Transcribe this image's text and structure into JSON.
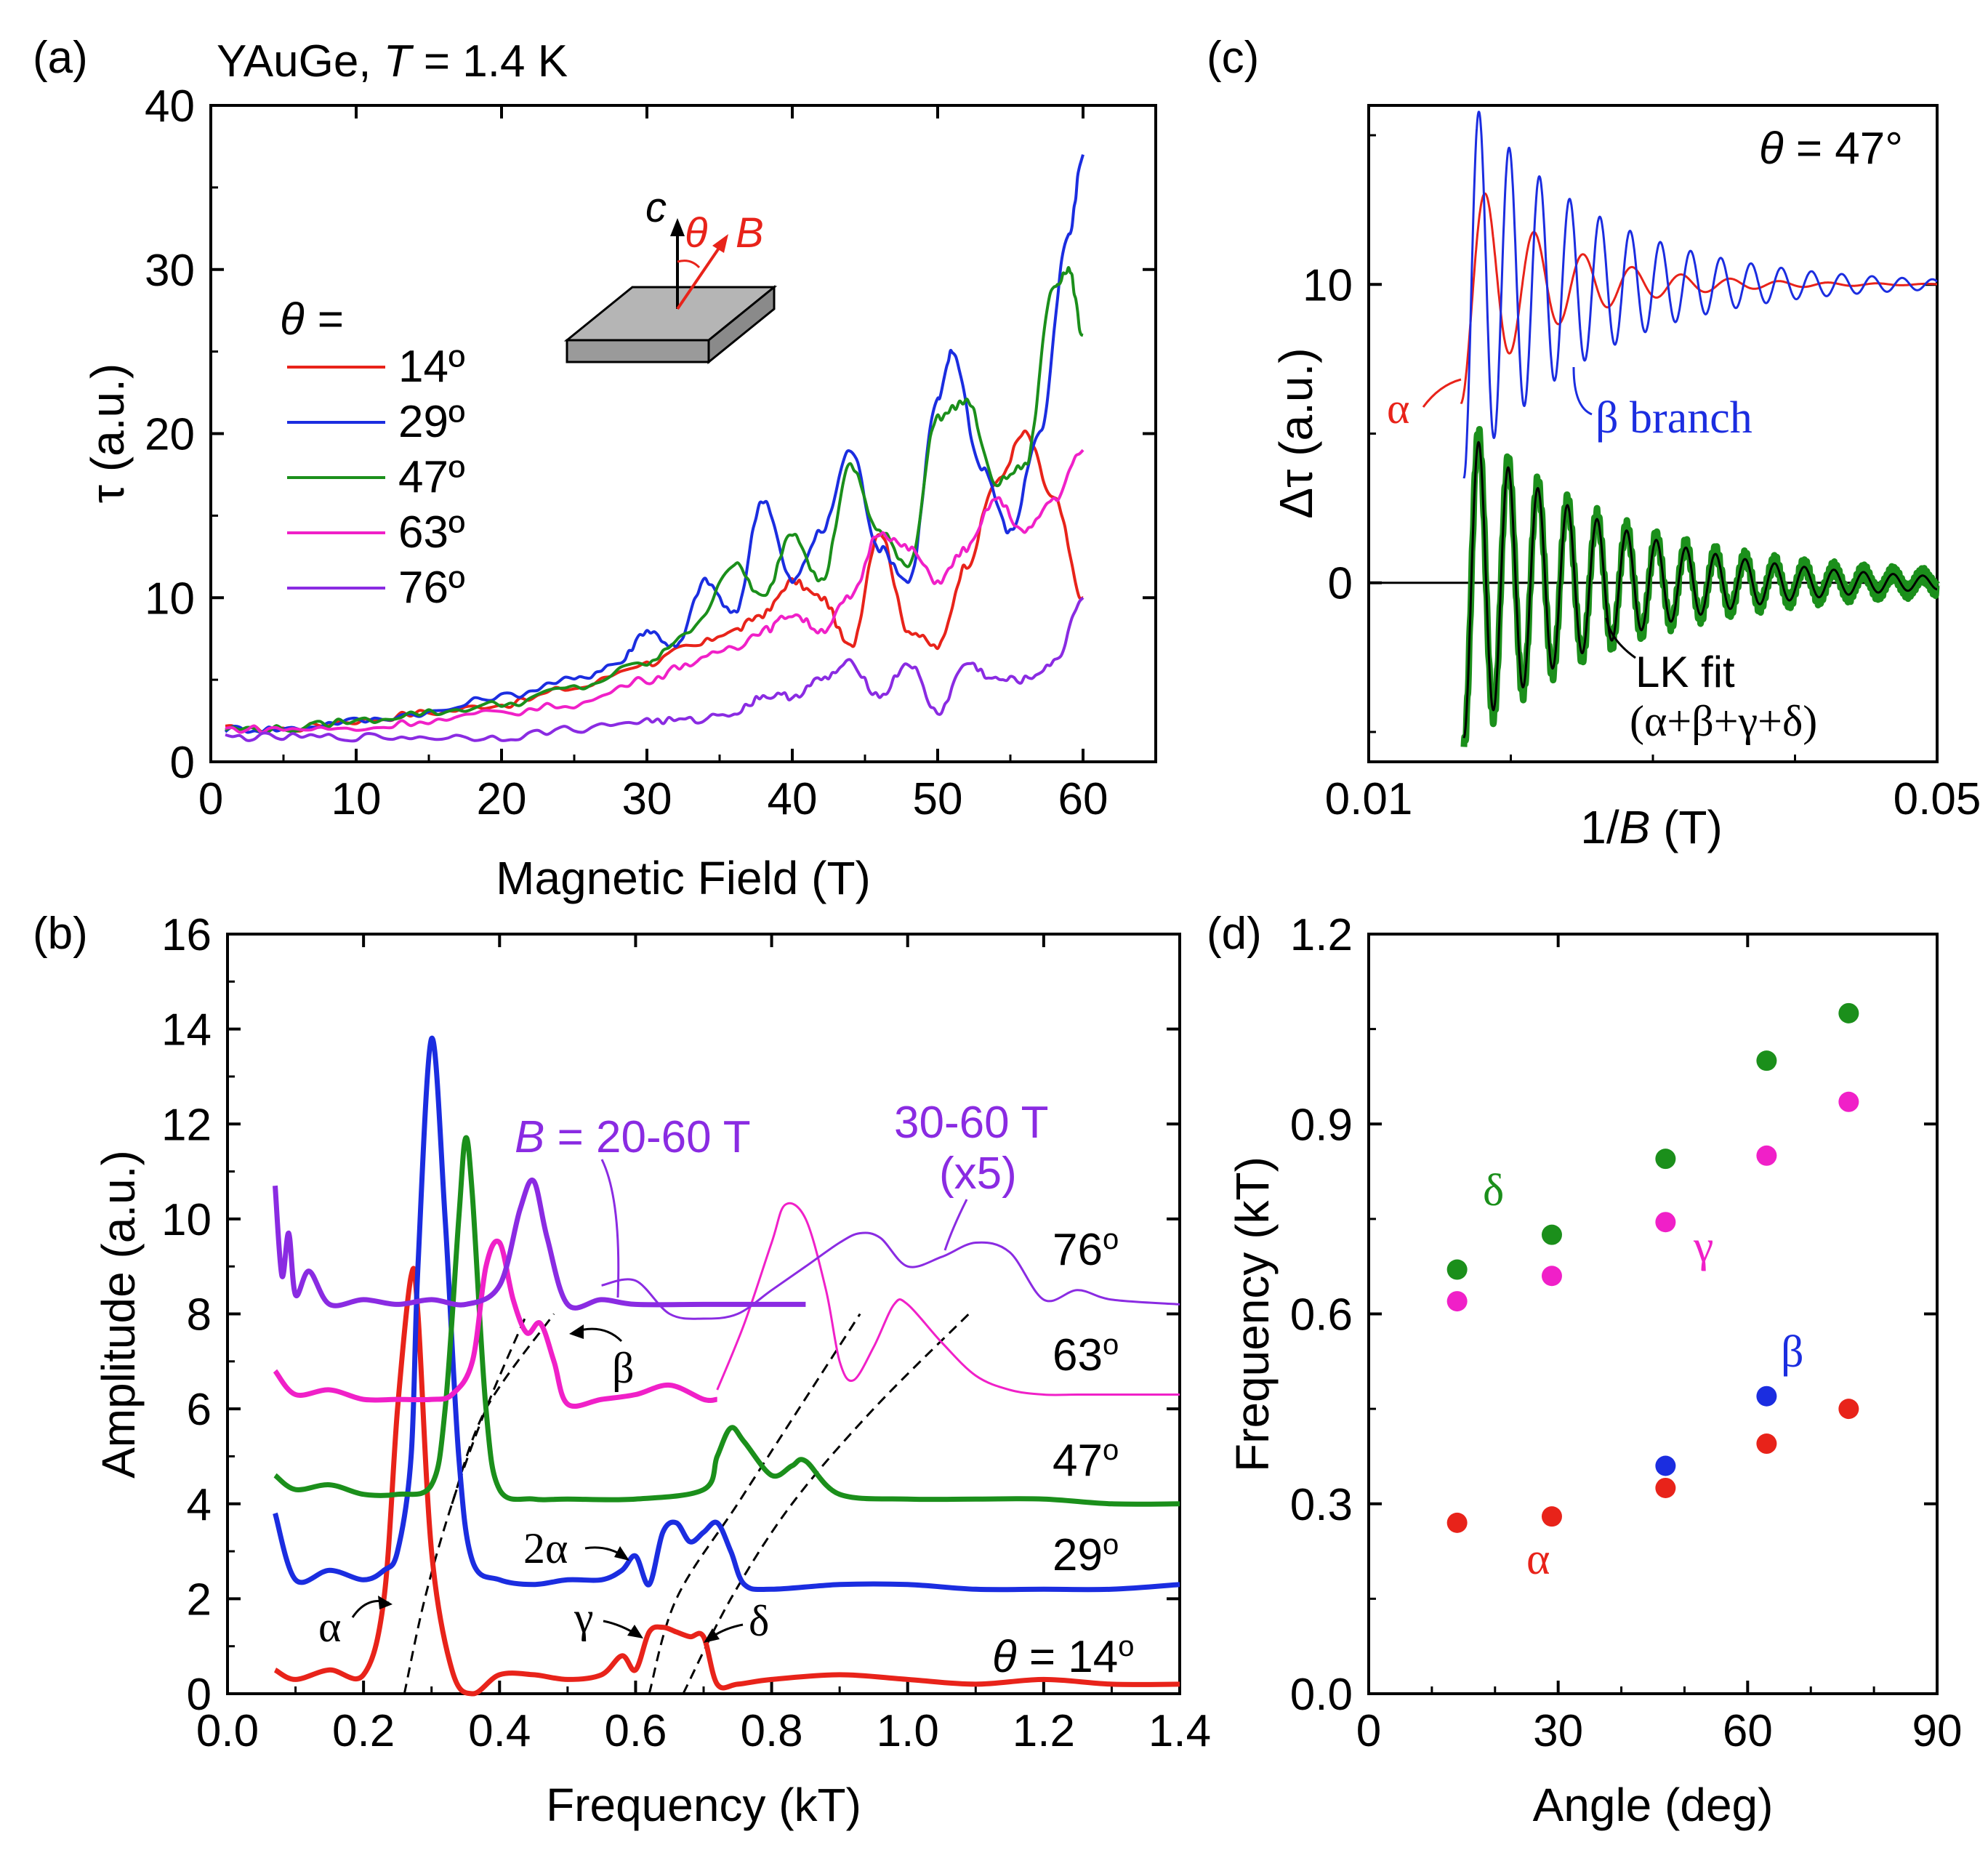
{
  "chart_data": [
    {
      "panel": "(a)",
      "type": "line",
      "title": "YAuGe, T = 1.4 K",
      "title_parts": [
        "YAuGe, ",
        "T",
        " = 1.4 K"
      ],
      "xlabel": "Magnetic Field (T)",
      "ylabel": "τ (a.u.)",
      "xlim": [
        0,
        65
      ],
      "ylim": [
        0,
        40
      ],
      "xticks": [
        0,
        10,
        20,
        30,
        40,
        50,
        60
      ],
      "yticks": [
        0,
        10,
        20,
        30,
        40
      ],
      "legend_header": "θ =",
      "legend_placement": "left",
      "inset_labels": {
        "axis": "c",
        "angle": "θ",
        "field": "B"
      },
      "series": [
        {
          "name": "14º",
          "color": "#e8231a",
          "x": [
            1,
            5,
            10,
            15,
            20,
            25,
            30,
            33,
            36,
            38,
            40,
            42,
            44,
            46,
            48,
            50,
            52,
            54,
            56,
            58,
            60
          ],
          "y": [
            2,
            2,
            2.5,
            3,
            3.5,
            4.5,
            6,
            7,
            8,
            9,
            11,
            10,
            7,
            14,
            8,
            7,
            12,
            17,
            20,
            16,
            10
          ]
        },
        {
          "name": "29º",
          "color": "#1b2de0",
          "x": [
            1,
            5,
            10,
            15,
            20,
            25,
            28,
            30,
            32,
            34,
            36,
            38,
            40,
            42,
            44,
            46,
            48,
            50,
            51,
            53,
            55,
            57,
            59,
            60
          ],
          "y": [
            2,
            2,
            2.5,
            3,
            4,
            5,
            6,
            8,
            7,
            11,
            9,
            16,
            11,
            14,
            19,
            13,
            11,
            22,
            25,
            18,
            14,
            20,
            32,
            37
          ]
        },
        {
          "name": "47º",
          "color": "#1b8f1b",
          "x": [
            1,
            5,
            10,
            15,
            20,
            25,
            30,
            33,
            36,
            38,
            40,
            42,
            44,
            46,
            48,
            50,
            52,
            54,
            56,
            58,
            59,
            60
          ],
          "y": [
            2,
            2,
            2.5,
            3,
            3.5,
            4.5,
            6,
            8,
            12,
            10,
            14,
            11,
            18,
            14,
            12,
            21,
            22,
            17,
            18,
            29,
            30,
            26
          ]
        },
        {
          "name": "63º",
          "color": "#f020c8",
          "x": [
            1,
            5,
            10,
            15,
            20,
            25,
            30,
            33,
            36,
            38,
            40,
            42,
            44,
            46,
            48,
            50,
            52,
            54,
            56,
            58,
            60
          ],
          "y": [
            2,
            2,
            2,
            2.5,
            3,
            3.5,
            5,
            6,
            7,
            8,
            9,
            8,
            10,
            14,
            13,
            11,
            13,
            16,
            14,
            16,
            19
          ]
        },
        {
          "name": "76º",
          "color": "#8a2be2",
          "x": [
            1,
            5,
            10,
            15,
            20,
            25,
            30,
            33,
            36,
            38,
            40,
            42,
            44,
            46,
            48,
            50,
            52,
            54,
            56,
            58,
            60
          ],
          "y": [
            1.5,
            1.5,
            1.5,
            1.5,
            1.5,
            2,
            2.5,
            2.5,
            3,
            4,
            4,
            5,
            6,
            4,
            6,
            3,
            6,
            5,
            5,
            6,
            10
          ]
        }
      ]
    },
    {
      "panel": "(b)",
      "type": "line",
      "xlabel": "Frequency (kT)",
      "ylabel": "Amplitude (a.u.)",
      "xlim": [
        0.0,
        1.4
      ],
      "ylim": [
        0,
        16
      ],
      "xticks": [
        "0.0",
        "0.2",
        "0.4",
        "0.6",
        "0.8",
        "1.0",
        "1.2",
        "1.4"
      ],
      "yticks": [
        0,
        2,
        4,
        6,
        8,
        10,
        12,
        14,
        16
      ],
      "series": [
        {
          "name": "θ = 14º",
          "name_parts": [
            "θ",
            " = 14",
            "o"
          ],
          "color": "#e8231a",
          "offset": 0,
          "x": [
            0.07,
            0.1,
            0.15,
            0.2,
            0.23,
            0.25,
            0.27,
            0.28,
            0.3,
            0.33,
            0.36,
            0.4,
            0.45,
            0.5,
            0.55,
            0.58,
            0.6,
            0.62,
            0.64,
            0.66,
            0.68,
            0.7,
            0.72,
            0.75,
            0.8,
            0.9,
            1.0,
            1.1,
            1.2,
            1.3,
            1.4
          ],
          "y": [
            0.5,
            0.3,
            0.5,
            0.4,
            2.0,
            6.0,
            8.8,
            8.0,
            3.0,
            0.5,
            0.0,
            0.4,
            0.4,
            0.3,
            0.4,
            0.8,
            0.5,
            1.3,
            1.4,
            1.3,
            1.2,
            1.2,
            0.2,
            0.2,
            0.3,
            0.4,
            0.3,
            0.2,
            0.3,
            0.2,
            0.2
          ]
        },
        {
          "name": "29º",
          "name_parts": [
            "29",
            "o"
          ],
          "color": "#1b2de0",
          "offset": 2,
          "x": [
            0.07,
            0.1,
            0.15,
            0.2,
            0.23,
            0.25,
            0.27,
            0.28,
            0.3,
            0.32,
            0.34,
            0.36,
            0.4,
            0.45,
            0.5,
            0.55,
            0.58,
            0.6,
            0.62,
            0.64,
            0.66,
            0.68,
            0.7,
            0.72,
            0.74,
            0.76,
            0.8,
            0.9,
            1.0,
            1.1,
            1.2,
            1.3,
            1.4
          ],
          "y": [
            3.8,
            2.4,
            2.6,
            2.4,
            2.6,
            3.0,
            5.0,
            9.0,
            13.8,
            10.0,
            5.0,
            2.8,
            2.4,
            2.3,
            2.4,
            2.4,
            2.6,
            2.9,
            2.3,
            3.4,
            3.6,
            3.2,
            3.4,
            3.6,
            3.0,
            2.3,
            2.2,
            2.3,
            2.3,
            2.2,
            2.2,
            2.2,
            2.3
          ]
        },
        {
          "name": "47º",
          "name_parts": [
            "47",
            "o"
          ],
          "color": "#1b8f1b",
          "offset": 4,
          "x": [
            0.07,
            0.1,
            0.15,
            0.2,
            0.25,
            0.3,
            0.32,
            0.34,
            0.35,
            0.36,
            0.38,
            0.4,
            0.45,
            0.5,
            0.6,
            0.7,
            0.72,
            0.74,
            0.76,
            0.8,
            0.83,
            0.85,
            0.9,
            1.0,
            1.1,
            1.2,
            1.3,
            1.4
          ],
          "y": [
            4.6,
            4.3,
            4.4,
            4.2,
            4.2,
            4.4,
            6.0,
            10.0,
            11.7,
            10.5,
            6.0,
            4.3,
            4.1,
            4.1,
            4.1,
            4.3,
            5.0,
            5.6,
            5.3,
            4.6,
            4.8,
            4.9,
            4.2,
            4.1,
            4.1,
            4.1,
            4.0,
            4.0
          ]
        },
        {
          "name": "63º",
          "name_parts": [
            "63",
            "o"
          ],
          "color": "#f020c8",
          "offset": 6,
          "x": [
            0.07,
            0.1,
            0.15,
            0.2,
            0.25,
            0.3,
            0.33,
            0.36,
            0.38,
            0.4,
            0.42,
            0.44,
            0.46,
            0.48,
            0.5,
            0.55,
            0.6,
            0.65,
            0.7,
            0.72
          ],
          "y": [
            6.8,
            6.3,
            6.4,
            6.2,
            6.2,
            6.2,
            6.3,
            7.0,
            9.0,
            9.5,
            8.3,
            7.6,
            7.8,
            7.0,
            6.1,
            6.2,
            6.3,
            6.5,
            6.2,
            6.2
          ],
          "ext_label": null
        },
        {
          "name": "63º (x5)",
          "color": "#f020c8",
          "offset": 6,
          "x": [
            0.72,
            0.76,
            0.8,
            0.82,
            0.85,
            0.88,
            0.9,
            0.92,
            0.95,
            0.98,
            1.0,
            1.05,
            1.1,
            1.15,
            1.2,
            1.25,
            1.3,
            1.4
          ],
          "y": [
            6.4,
            7.8,
            9.5,
            10.3,
            10.0,
            8.5,
            7.0,
            6.6,
            7.3,
            8.2,
            8.2,
            7.4,
            6.7,
            6.4,
            6.3,
            6.3,
            6.3,
            6.3
          ]
        },
        {
          "name": "76º",
          "name_parts": [
            "76",
            "o"
          ],
          "color": "#8a2be2",
          "offset": 8,
          "x": [
            0.07,
            0.08,
            0.09,
            0.1,
            0.12,
            0.15,
            0.2,
            0.25,
            0.3,
            0.35,
            0.4,
            0.43,
            0.45,
            0.47,
            0.5,
            0.55,
            0.6,
            0.7,
            0.8,
            0.85
          ],
          "y": [
            10.7,
            8.8,
            9.7,
            8.4,
            8.9,
            8.2,
            8.3,
            8.2,
            8.3,
            8.2,
            8.6,
            10.2,
            10.8,
            9.6,
            8.2,
            8.3,
            8.2,
            8.2,
            8.2,
            8.2
          ]
        },
        {
          "name": "76º (x5)",
          "color": "#8a2be2",
          "offset": 8,
          "x": [
            0.55,
            0.6,
            0.65,
            0.7,
            0.75,
            0.8,
            0.85,
            0.9,
            0.93,
            0.96,
            1.0,
            1.05,
            1.1,
            1.15,
            1.2,
            1.25,
            1.3,
            1.4
          ],
          "y": [
            8.6,
            8.7,
            8.0,
            7.9,
            8.0,
            8.5,
            9.0,
            9.5,
            9.7,
            9.6,
            9.0,
            9.2,
            9.5,
            9.3,
            8.3,
            8.5,
            8.3,
            8.2
          ]
        }
      ],
      "annotations": [
        "B = 20-60 T",
        "30-60 T",
        "(x5)",
        "76o",
        "63o",
        "47o",
        "29o",
        "θ = 14o",
        "α",
        "β",
        "γ",
        "δ",
        "2α"
      ],
      "range_label_parts": [
        "B",
        " = 20-60 T"
      ],
      "x5_label_top": "30-60 T",
      "x5_label_bottom": "(x5)",
      "branch_labels": {
        "alpha": "α",
        "beta": "β",
        "gamma": "γ",
        "delta": "δ",
        "two_alpha": "2α"
      }
    },
    {
      "panel": "(c)",
      "type": "line",
      "xlabel": "1/B (T)",
      "xlabel_parts": [
        "1/",
        "B",
        " (T)"
      ],
      "ylabel": "Δτ (a.u.)",
      "xlim": [
        0.01,
        0.05
      ],
      "ylim": [
        -6,
        16
      ],
      "xticks": [
        "0.01",
        "0.05"
      ],
      "yticks": [
        0,
        10
      ],
      "angle_label": "θ = 47°",
      "angle_label_parts": [
        "θ",
        " = 47°"
      ],
      "labels": {
        "alpha": "α",
        "beta": "β branch",
        "fit": "LK fit",
        "fit_terms": "(α+β+γ+δ)"
      },
      "series": [
        {
          "name": "α",
          "color": "#e8231a",
          "x_range": [
            0.0165,
            0.05
          ],
          "center": 10,
          "amplitude": 4.0,
          "frequency": 290,
          "decay": 160
        },
        {
          "name": "β branch",
          "color": "#1b2de0",
          "x_range": [
            0.0167,
            0.05
          ],
          "center": 10,
          "amplitude": 6.5,
          "frequency": 470,
          "decay": 110
        },
        {
          "name": "data (47°)",
          "color": "#1b8f1b",
          "x_range": [
            0.0167,
            0.05
          ],
          "center": 0,
          "amplitude": 5.5,
          "frequency": 480,
          "decay": 95
        },
        {
          "name": "LK fit (α+β+γ+δ)",
          "color": "#000000",
          "x_range": [
            0.0167,
            0.05
          ],
          "center": 0,
          "amplitude": 5.2,
          "frequency": 480,
          "decay": 95
        }
      ]
    },
    {
      "panel": "(d)",
      "type": "scatter",
      "xlabel": "Angle (deg)",
      "ylabel": "Frequency (kT)",
      "xlim": [
        0,
        90
      ],
      "ylim": [
        0.0,
        1.2
      ],
      "xticks": [
        "0",
        "30",
        "60",
        "90"
      ],
      "yticks": [
        "0.0",
        "0.3",
        "0.6",
        "0.9",
        "1.2"
      ],
      "series": [
        {
          "name": "α",
          "color": "#e8231a",
          "x": [
            14,
            29,
            47,
            63,
            76
          ],
          "y": [
            0.27,
            0.28,
            0.325,
            0.395,
            0.45
          ]
        },
        {
          "name": "β",
          "color": "#1b2de0",
          "x": [
            47,
            63
          ],
          "y": [
            0.36,
            0.47
          ]
        },
        {
          "name": "γ",
          "color": "#f020c8",
          "x": [
            14,
            29,
            47,
            63,
            76
          ],
          "y": [
            0.62,
            0.66,
            0.745,
            0.85,
            0.935
          ]
        },
        {
          "name": "δ",
          "color": "#1b8f1b",
          "x": [
            14,
            29,
            47,
            63,
            76
          ],
          "y": [
            0.67,
            0.725,
            0.845,
            1.0,
            1.075
          ]
        }
      ]
    }
  ]
}
